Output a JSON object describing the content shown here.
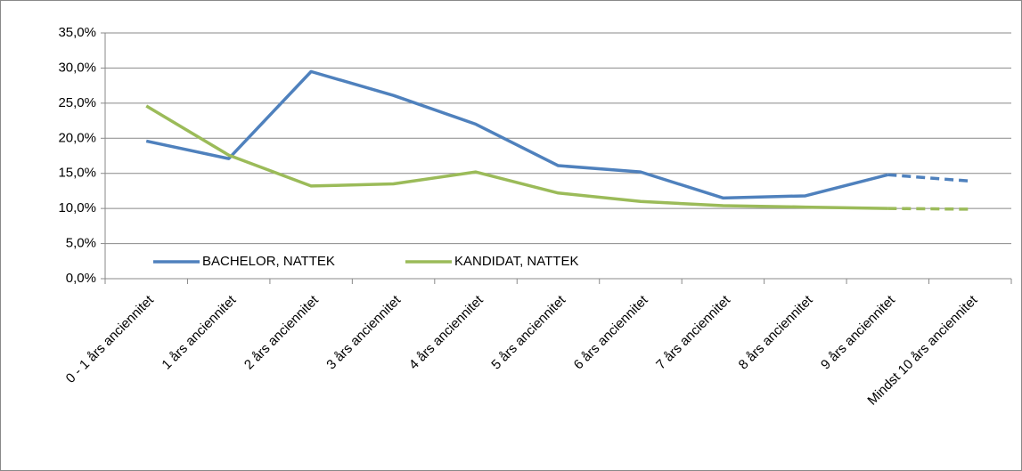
{
  "chart_data": {
    "type": "line",
    "categories": [
      "0 - 1 års anciennitet",
      "1 års anciennitet",
      "2 års anciennitet",
      "3 års anciennitet",
      "4 års anciennitet",
      "5 års anciennitet",
      "6 års anciennitet",
      "7 års anciennitet",
      "8 års anciennitet",
      "9 års anciennitet",
      "Mindst 10 års anciennitet"
    ],
    "series": [
      {
        "name": "BACHELOR, NATTEK",
        "color": "#4f81bd",
        "dash_last": true,
        "values": [
          19.6,
          17.1,
          29.5,
          26.1,
          22.0,
          16.1,
          15.2,
          11.5,
          11.8,
          14.8,
          13.9
        ]
      },
      {
        "name": "KANDIDAT, NATTEK",
        "color": "#9bbb59",
        "dash_last": true,
        "values": [
          24.6,
          17.6,
          13.2,
          13.5,
          15.2,
          12.2,
          11.0,
          10.4,
          10.2,
          10.0,
          9.9
        ]
      }
    ],
    "ylim": [
      0,
      35
    ],
    "yticks": [
      {
        "value": 0,
        "label": "0,0%"
      },
      {
        "value": 5,
        "label": "5,0%"
      },
      {
        "value": 10,
        "label": "10,0%"
      },
      {
        "value": 15,
        "label": "15,0%"
      },
      {
        "value": 20,
        "label": "20,0%"
      },
      {
        "value": 25,
        "label": "25,0%"
      },
      {
        "value": 30,
        "label": "30,0%"
      },
      {
        "value": 35,
        "label": "35,0%"
      }
    ],
    "grid": true,
    "legend": "lower left"
  }
}
